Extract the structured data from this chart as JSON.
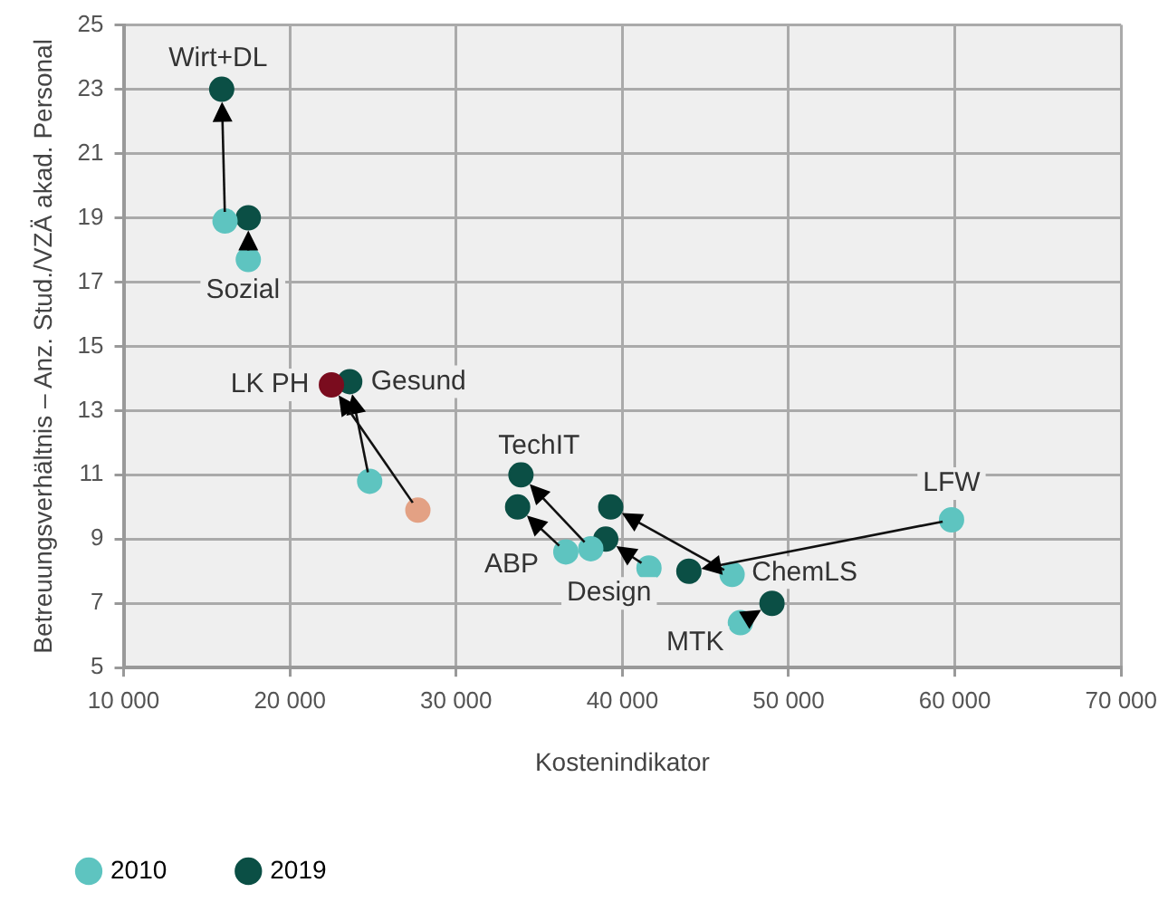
{
  "chart_data": {
    "type": "scatter",
    "xlabel": "Kostenindikator",
    "ylabel": "Betreuungsverhältnis – Anz. Stud./VZÄ akad. Personal",
    "series": [
      {
        "name": "2010",
        "color": "#5ec4c0",
        "colors": [
          "#5ec4c0",
          "#5ec4c0",
          "#5ec4c0",
          "#e3a184",
          "#5ec4c0",
          "#5ec4c0",
          "#5ec4c0",
          "#5ec4c0",
          "#5ec4c0",
          "#5ec4c0"
        ],
        "x": [
          16100,
          17500,
          24800,
          27700,
          38100,
          36600,
          41600,
          46600,
          59800,
          47100
        ],
        "values": [
          18.9,
          17.7,
          10.8,
          9.9,
          8.7,
          8.6,
          8.1,
          7.9,
          9.6,
          6.4
        ]
      },
      {
        "name": "2019",
        "color": "#0b4f45",
        "colors": [
          "#0b4f45",
          "#0b4f45",
          "#0b4f45",
          "#7a0c1e",
          "#0b4f45",
          "#0b4f45",
          "#0b4f45",
          "#0b4f45",
          "#0b4f45",
          "#0b4f45"
        ],
        "x": [
          15900,
          17500,
          23600,
          22500,
          33900,
          33700,
          39000,
          39300,
          44000,
          49000
        ],
        "values": [
          23.0,
          19.0,
          13.9,
          13.8,
          11.0,
          10.0,
          9.0,
          10.0,
          8.0,
          7.0
        ]
      }
    ],
    "annotations": [
      {
        "text": "Wirt+DL",
        "x": 15900,
        "y": 23.0
      },
      {
        "text": "Sozial",
        "x": 17500,
        "y": 17.7
      },
      {
        "text": "Gesund",
        "x": 23600,
        "y": 13.9
      },
      {
        "text": "LK PH",
        "x": 22500,
        "y": 13.8
      },
      {
        "text": "TechIT",
        "x": 33900,
        "y": 11.0
      },
      {
        "text": "ABP",
        "x": 36600,
        "y": 8.6
      },
      {
        "text": "Design",
        "x": 41600,
        "y": 8.1
      },
      {
        "text": "ChemLS",
        "x": 46600,
        "y": 7.9
      },
      {
        "text": "LFW",
        "x": 59800,
        "y": 9.6
      },
      {
        "text": "MTK",
        "x": 47100,
        "y": 6.4
      }
    ],
    "xlim": [
      10000,
      70000
    ],
    "xticks": [
      {
        "value": 10000,
        "label": "10 000"
      },
      {
        "value": 20000,
        "label": "20 000"
      },
      {
        "value": 30000,
        "label": "30 000"
      },
      {
        "value": 40000,
        "label": "40 000"
      },
      {
        "value": 50000,
        "label": "50 000"
      },
      {
        "value": 60000,
        "label": "60 000"
      },
      {
        "value": 70000,
        "label": "70 000"
      }
    ],
    "ylim": [
      5,
      25
    ],
    "yticks": [
      5,
      7,
      9,
      11,
      13,
      15,
      17,
      19,
      21,
      23,
      25
    ],
    "grid": true,
    "legend": "bottom left",
    "marker": "circle"
  }
}
